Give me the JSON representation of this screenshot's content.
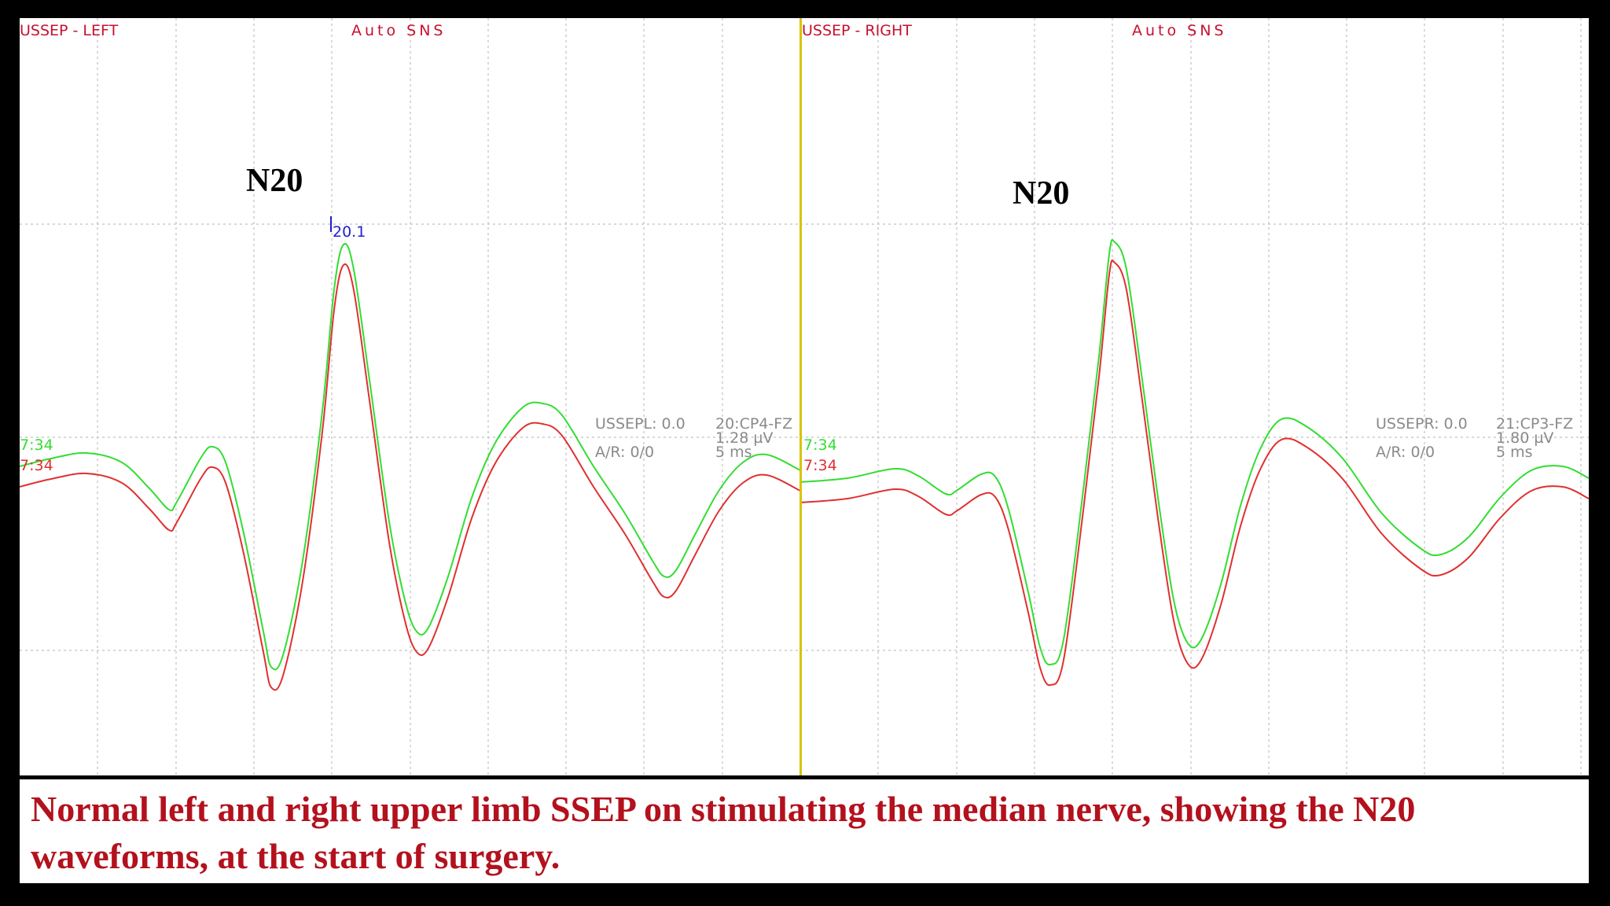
{
  "colors": {
    "trace_green": "#33dd33",
    "trace_red": "#e03030",
    "divider": "#d8c400",
    "grid": "#b8b8b8",
    "caption": "#b3111d"
  },
  "left": {
    "title": "USSEP - LEFT",
    "mode": "Auto  SNS",
    "peak_label": "N20",
    "marker_value": "20.1",
    "info": {
      "channel": "USSEPL: 0.0",
      "ar": "A/R: 0/0",
      "montage": "20:CP4-FZ",
      "sensitivity": "1.28 µV",
      "timebase": "5 ms"
    },
    "trace_times": [
      "7:34",
      "7:34"
    ]
  },
  "right": {
    "title": "USSEP - RIGHT",
    "mode": "Auto  SNS",
    "peak_label": "N20",
    "info": {
      "channel": "USSEPR: 0.0",
      "ar": "A/R: 0/0",
      "montage": "21:CP3-FZ",
      "sensitivity": "1.80 µV",
      "timebase": "5 ms"
    },
    "trace_times": [
      "7:34",
      "7:34"
    ]
  },
  "caption": "Normal left and right upper limb SSEP on stimulating the median nerve, showing the N20 waveforms, at the start of surgery."
}
